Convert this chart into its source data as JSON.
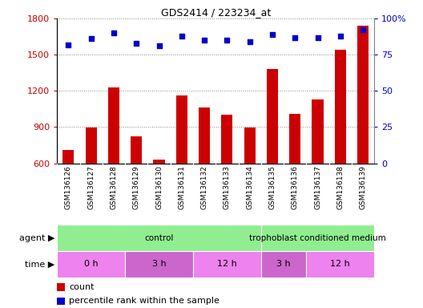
{
  "title": "GDS2414 / 223234_at",
  "samples": [
    "GSM136126",
    "GSM136127",
    "GSM136128",
    "GSM136129",
    "GSM136130",
    "GSM136131",
    "GSM136132",
    "GSM136133",
    "GSM136134",
    "GSM136135",
    "GSM136136",
    "GSM136137",
    "GSM136138",
    "GSM136139"
  ],
  "counts": [
    710,
    893,
    1228,
    820,
    630,
    1160,
    1060,
    1000,
    895,
    1380,
    1010,
    1130,
    1540,
    1740
  ],
  "percentile": [
    82,
    86,
    90,
    83,
    81,
    88,
    85,
    85,
    84,
    89,
    87,
    87,
    88,
    92
  ],
  "ylim_left": [
    600,
    1800
  ],
  "ylim_right": [
    0,
    100
  ],
  "yticks_left": [
    600,
    900,
    1200,
    1500,
    1800
  ],
  "yticks_right": [
    0,
    25,
    50,
    75,
    100
  ],
  "bar_color": "#cc0000",
  "dot_color": "#0000cc",
  "agent_groups": [
    {
      "label": "control",
      "xstart": 0,
      "xend": 9,
      "color": "#90EE90"
    },
    {
      "label": "trophoblast conditioned medium",
      "xstart": 9,
      "xend": 14,
      "color": "#90EE90"
    }
  ],
  "time_groups": [
    {
      "label": "0 h",
      "xstart": 0,
      "xend": 3,
      "color": "#EE82EE"
    },
    {
      "label": "3 h",
      "xstart": 3,
      "xend": 6,
      "color": "#CC66CC"
    },
    {
      "label": "12 h",
      "xstart": 6,
      "xend": 9,
      "color": "#EE82EE"
    },
    {
      "label": "3 h",
      "xstart": 9,
      "xend": 11,
      "color": "#CC66CC"
    },
    {
      "label": "12 h",
      "xstart": 11,
      "xend": 14,
      "color": "#EE82EE"
    }
  ],
  "agent_label": "agent",
  "time_label": "time",
  "legend_count_label": "count",
  "legend_pct_label": "percentile rank within the sample",
  "bg_color": "#ffffff",
  "label_bg_color": "#d3d3d3",
  "grid_color": "#888888",
  "right_ytick_labels": [
    "0",
    "25",
    "50",
    "75",
    "100%"
  ]
}
